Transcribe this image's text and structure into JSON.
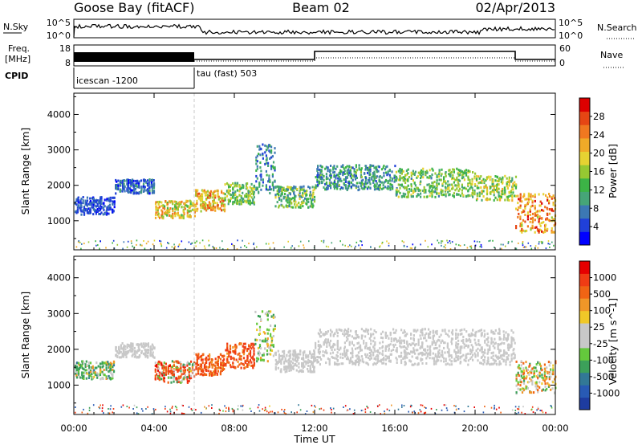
{
  "header": {
    "station": "Goose Bay (fitACF)",
    "beam": "Beam 02",
    "date": "02/Apr/2013"
  },
  "panels": {
    "nsky": {
      "label": "N.Sky",
      "right_label": "N.Search",
      "ticks": [
        "10^5",
        "10^0"
      ],
      "right_ticks": [
        "10^5",
        "10^0"
      ]
    },
    "freq": {
      "label_line1": "Freq.",
      "label_line2": "[MHz]",
      "ticks": [
        "18",
        "8"
      ],
      "right_label": "Nave",
      "right_ticks": [
        "60",
        "0"
      ]
    },
    "cpid": {
      "label": "CPID",
      "segments": [
        {
          "text": "icescan -1200",
          "start_hour": 0
        },
        {
          "text": "tau (fast) 503",
          "start_hour": 6
        }
      ]
    }
  },
  "chart_data": [
    {
      "type": "heatmap",
      "name": "power",
      "ylabel": "Slant Range [km]",
      "xlabel": "Time UT",
      "xlim": [
        0,
        24
      ],
      "ylim": [
        180,
        4600
      ],
      "x_ticks": [
        0,
        4,
        8,
        12,
        16,
        20,
        24
      ],
      "x_tick_labels": [
        "00:00",
        "04:00",
        "08:00",
        "12:00",
        "16:00",
        "20:00",
        "00:00"
      ],
      "y_ticks": [
        1000,
        2000,
        3000,
        4000
      ],
      "y_tick_labels": [
        "1000",
        "2000",
        "3000",
        "4000"
      ],
      "colorbar": {
        "label": "Power [dB]",
        "tick_labels": [
          "28",
          "24",
          "20",
          "16",
          "12",
          "8",
          "4"
        ],
        "colors": [
          "#0000ff",
          "#2040d8",
          "#3c78b4",
          "#46a578",
          "#3cb446",
          "#96c832",
          "#e6d232",
          "#f0aa28",
          "#f07820",
          "#e64614",
          "#dc0000"
        ]
      },
      "bands": [
        {
          "t0": 0.0,
          "t1": 2.0,
          "r0": 1200,
          "r1": 1700,
          "p": [
            4,
            10
          ]
        },
        {
          "t0": 2.0,
          "t1": 4.0,
          "r0": 1800,
          "r1": 2200,
          "p": [
            4,
            12
          ]
        },
        {
          "t0": 4.0,
          "t1": 6.0,
          "r0": 1100,
          "r1": 1600,
          "p": [
            14,
            26
          ]
        },
        {
          "t0": 6.0,
          "t1": 7.5,
          "r0": 1300,
          "r1": 1900,
          "p": [
            16,
            28
          ]
        },
        {
          "t0": 7.5,
          "t1": 9.0,
          "r0": 1500,
          "r1": 2100,
          "p": [
            10,
            20
          ]
        },
        {
          "t0": 9.0,
          "t1": 10.0,
          "r0": 1800,
          "r1": 3200,
          "p": [
            6,
            14
          ]
        },
        {
          "t0": 10.0,
          "t1": 12.0,
          "r0": 1400,
          "r1": 2000,
          "p": [
            8,
            20
          ]
        },
        {
          "t0": 12.0,
          "t1": 16.0,
          "r0": 1900,
          "r1": 2600,
          "p": [
            6,
            16
          ]
        },
        {
          "t0": 16.0,
          "t1": 20.0,
          "r0": 1700,
          "r1": 2500,
          "p": [
            10,
            20
          ]
        },
        {
          "t0": 20.0,
          "t1": 22.0,
          "r0": 1600,
          "r1": 2300,
          "p": [
            12,
            22
          ]
        },
        {
          "t0": 22.0,
          "t1": 24.0,
          "r0": 700,
          "r1": 1800,
          "p": [
            18,
            30
          ]
        }
      ]
    },
    {
      "type": "heatmap",
      "name": "velocity",
      "ylabel": "Slant Range [km]",
      "xlabel": "Time UT",
      "xlim": [
        0,
        24
      ],
      "ylim": [
        180,
        4600
      ],
      "x_ticks": [
        0,
        4,
        8,
        12,
        16,
        20,
        24
      ],
      "x_tick_labels": [
        "00:00",
        "04:00",
        "08:00",
        "12:00",
        "16:00",
        "20:00",
        "00:00"
      ],
      "y_ticks": [
        1000,
        2000,
        3000,
        4000
      ],
      "y_tick_labels": [
        "1000",
        "2000",
        "3000",
        "4000"
      ],
      "colorbar": {
        "label": "Velocity [m s^-1]",
        "tick_labels": [
          "1000",
          "500",
          "100",
          "25",
          "-25",
          "-100",
          "-500",
          "-1000"
        ],
        "colors": [
          "#1e3ca0",
          "#285ab4",
          "#327896",
          "#3ca05a",
          "#64c83c",
          "#c8c8c8",
          "#c8c8c8",
          "#f0c828",
          "#f09628",
          "#f06414",
          "#f03c14",
          "#e60000"
        ]
      },
      "bands": [
        {
          "t0": 0.0,
          "t1": 2.0,
          "r0": 1200,
          "r1": 1700,
          "v": [
            -100,
            300
          ]
        },
        {
          "t0": 2.0,
          "t1": 4.0,
          "r0": 1800,
          "r1": 2200,
          "v": [
            -20,
            20
          ]
        },
        {
          "t0": 4.0,
          "t1": 6.0,
          "r0": 1100,
          "r1": 1700,
          "v": [
            -600,
            200
          ]
        },
        {
          "t0": 6.0,
          "t1": 7.5,
          "r0": 1300,
          "r1": 1900,
          "v": [
            -400,
            -50
          ]
        },
        {
          "t0": 7.5,
          "t1": 9.0,
          "r0": 1500,
          "r1": 2200,
          "v": [
            -450,
            -60
          ]
        },
        {
          "t0": 9.0,
          "t1": 10.0,
          "r0": 1700,
          "r1": 3100,
          "v": [
            -80,
            150
          ]
        },
        {
          "t0": 10.0,
          "t1": 12.0,
          "r0": 1400,
          "r1": 2000,
          "v": [
            -20,
            20
          ]
        },
        {
          "t0": 12.0,
          "t1": 22.0,
          "r0": 1600,
          "r1": 2600,
          "v": [
            -20,
            20
          ]
        },
        {
          "t0": 22.0,
          "t1": 24.0,
          "r0": 800,
          "r1": 1700,
          "v": [
            -150,
            120
          ]
        }
      ]
    }
  ]
}
